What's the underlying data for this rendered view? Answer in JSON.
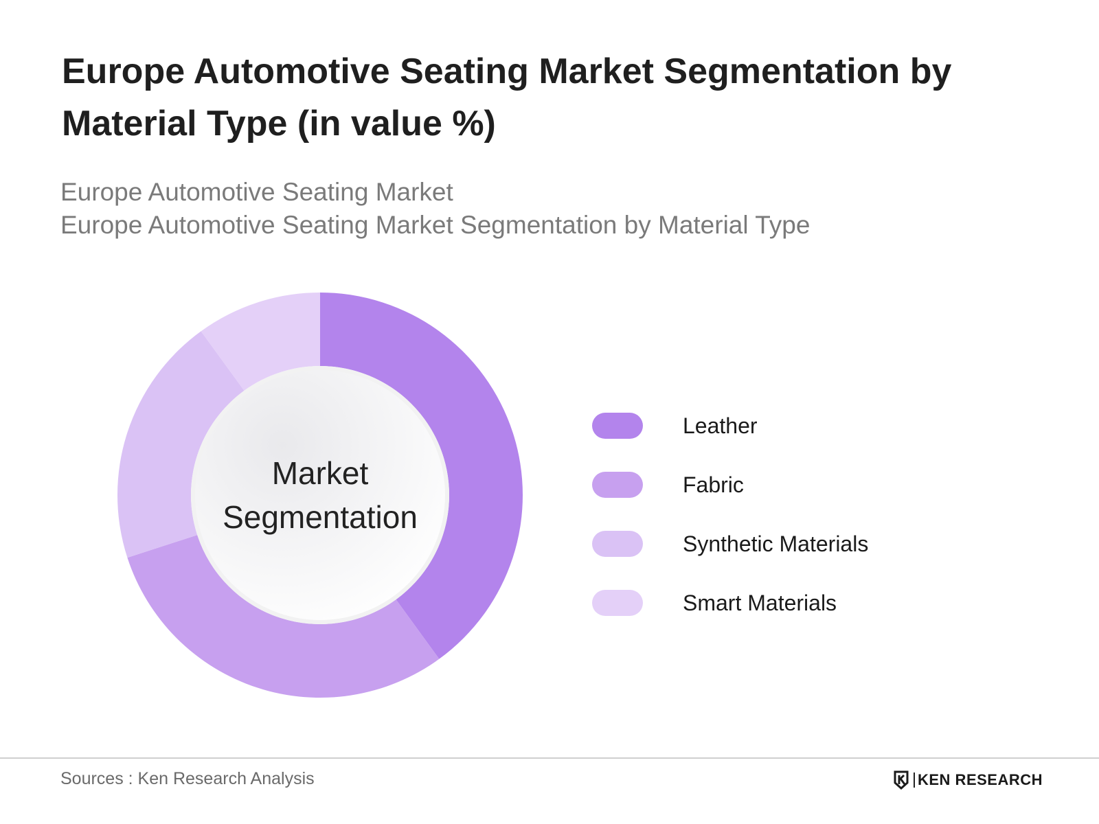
{
  "header": {
    "title": "Europe Automotive Seating Market Segmentation by Material Type (in value %)",
    "subtitle_line1": "Europe Automotive Seating Market",
    "subtitle_line2": "Europe Automotive Seating Market Segmentation by Material Type"
  },
  "center": {
    "line1": "Market",
    "line2": "Segmentation"
  },
  "chart_data": {
    "type": "pie",
    "variant": "donut",
    "categories": [
      "Leather",
      "Fabric",
      "Synthetic Materials",
      "Smart Materials"
    ],
    "values": [
      40,
      30,
      20,
      10
    ],
    "unit": "%",
    "colors": [
      "#b384ec",
      "#c7a0ef",
      "#dac2f5",
      "#e4d0f8"
    ],
    "legend_position": "right"
  },
  "footer": {
    "source": "Sources : Ken Research Analysis",
    "brand": "KEN RESEARCH"
  }
}
